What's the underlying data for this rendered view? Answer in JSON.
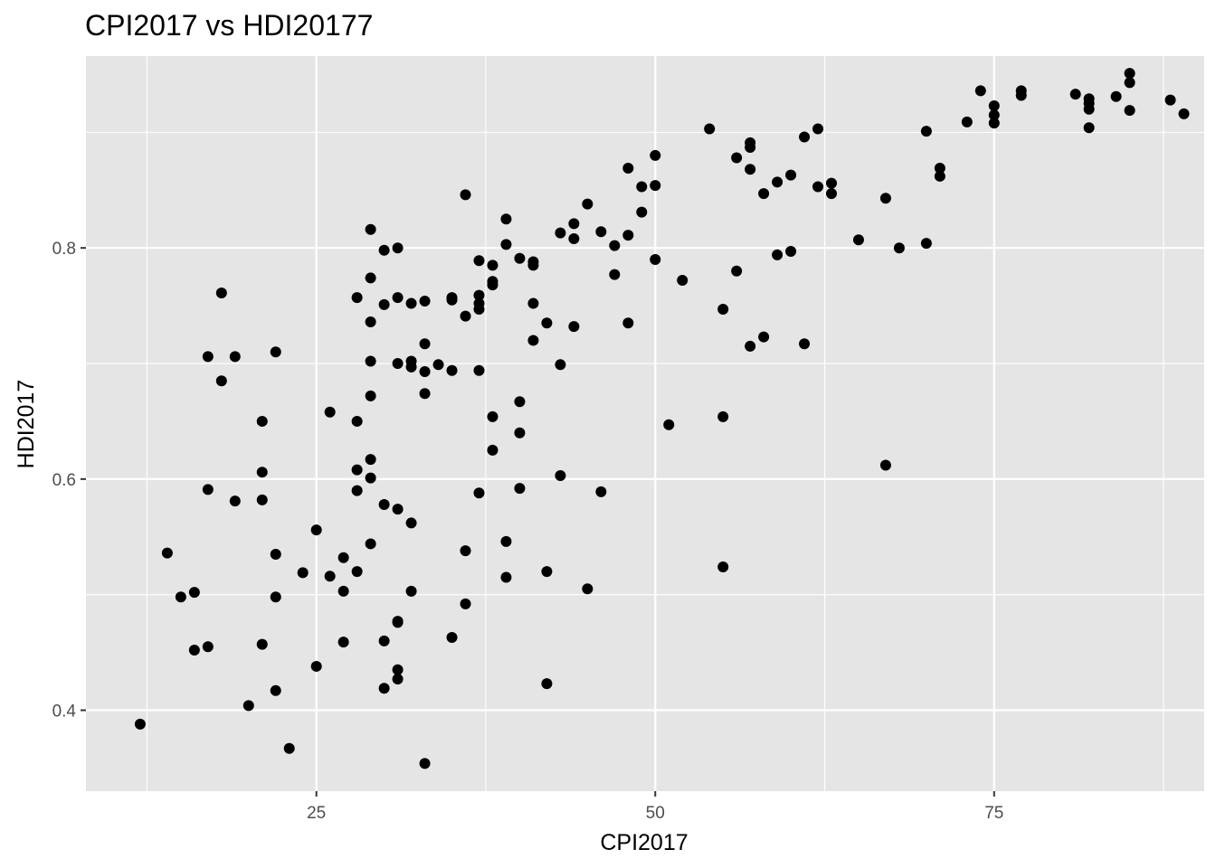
{
  "chart_data": {
    "type": "scatter",
    "title": "CPI2017 vs HDI20177",
    "xlabel": "CPI2017",
    "ylabel": "HDI2017",
    "xlim": [
      8,
      90.5
    ],
    "ylim": [
      0.33,
      0.966
    ],
    "x_major_ticks": [
      25,
      50,
      75
    ],
    "x_tick_labels": [
      "25",
      "50",
      "75"
    ],
    "x_minor_ticks": [
      12.5,
      37.5,
      62.5,
      87.5
    ],
    "y_major_ticks": [
      0.4,
      0.6,
      0.8
    ],
    "y_tick_labels": [
      "0.4",
      "0.6",
      "0.8"
    ],
    "y_minor_ticks": [
      0.5,
      0.7,
      0.9
    ],
    "grid": true,
    "point_color": "#000000",
    "panel_color": "#e5e5e5",
    "grid_color": "#ffffff",
    "points": [
      [
        12,
        0.388
      ],
      [
        14,
        0.536
      ],
      [
        15,
        0.498
      ],
      [
        16,
        0.502
      ],
      [
        16,
        0.452
      ],
      [
        17,
        0.455
      ],
      [
        17,
        0.706
      ],
      [
        17,
        0.591
      ],
      [
        18,
        0.761
      ],
      [
        18,
        0.685
      ],
      [
        19,
        0.706
      ],
      [
        19,
        0.581
      ],
      [
        20,
        0.404
      ],
      [
        21,
        0.65
      ],
      [
        21,
        0.606
      ],
      [
        21,
        0.582
      ],
      [
        21,
        0.457
      ],
      [
        22,
        0.71
      ],
      [
        22,
        0.535
      ],
      [
        22,
        0.498
      ],
      [
        22,
        0.417
      ],
      [
        23,
        0.367
      ],
      [
        24,
        0.519
      ],
      [
        25,
        0.556
      ],
      [
        25,
        0.438
      ],
      [
        26,
        0.658
      ],
      [
        26,
        0.516
      ],
      [
        27,
        0.532
      ],
      [
        27,
        0.503
      ],
      [
        27,
        0.459
      ],
      [
        28,
        0.757
      ],
      [
        28,
        0.65
      ],
      [
        28,
        0.608
      ],
      [
        28,
        0.59
      ],
      [
        28,
        0.52
      ],
      [
        29,
        0.816
      ],
      [
        29,
        0.774
      ],
      [
        29,
        0.736
      ],
      [
        29,
        0.702
      ],
      [
        29,
        0.672
      ],
      [
        29,
        0.617
      ],
      [
        29,
        0.601
      ],
      [
        29,
        0.544
      ],
      [
        30,
        0.798
      ],
      [
        30,
        0.751
      ],
      [
        30,
        0.578
      ],
      [
        30,
        0.46
      ],
      [
        30,
        0.419
      ],
      [
        31,
        0.8
      ],
      [
        31,
        0.757
      ],
      [
        31,
        0.7
      ],
      [
        31,
        0.574
      ],
      [
        31,
        0.477
      ],
      [
        31,
        0.476
      ],
      [
        31,
        0.435
      ],
      [
        31,
        0.427
      ],
      [
        32,
        0.752
      ],
      [
        32,
        0.702
      ],
      [
        32,
        0.697
      ],
      [
        32,
        0.562
      ],
      [
        32,
        0.503
      ],
      [
        33,
        0.754
      ],
      [
        33,
        0.717
      ],
      [
        33,
        0.693
      ],
      [
        33,
        0.674
      ],
      [
        33,
        0.354
      ],
      [
        34,
        0.699
      ],
      [
        35,
        0.757
      ],
      [
        35,
        0.755
      ],
      [
        35,
        0.694
      ],
      [
        35,
        0.463
      ],
      [
        36,
        0.846
      ],
      [
        36,
        0.741
      ],
      [
        36,
        0.538
      ],
      [
        36,
        0.492
      ],
      [
        37,
        0.789
      ],
      [
        37,
        0.759
      ],
      [
        37,
        0.752
      ],
      [
        37,
        0.747
      ],
      [
        37,
        0.694
      ],
      [
        37,
        0.588
      ],
      [
        38,
        0.785
      ],
      [
        38,
        0.771
      ],
      [
        38,
        0.768
      ],
      [
        38,
        0.654
      ],
      [
        38,
        0.625
      ],
      [
        39,
        0.825
      ],
      [
        39,
        0.803
      ],
      [
        39,
        0.546
      ],
      [
        39,
        0.515
      ],
      [
        40,
        0.791
      ],
      [
        40,
        0.667
      ],
      [
        40,
        0.64
      ],
      [
        40,
        0.592
      ],
      [
        41,
        0.788
      ],
      [
        41,
        0.785
      ],
      [
        41,
        0.752
      ],
      [
        41,
        0.72
      ],
      [
        42,
        0.735
      ],
      [
        42,
        0.52
      ],
      [
        42,
        0.423
      ],
      [
        43,
        0.813
      ],
      [
        43,
        0.699
      ],
      [
        43,
        0.603
      ],
      [
        44,
        0.821
      ],
      [
        44,
        0.808
      ],
      [
        44,
        0.732
      ],
      [
        45,
        0.838
      ],
      [
        45,
        0.505
      ],
      [
        46,
        0.814
      ],
      [
        46,
        0.589
      ],
      [
        47,
        0.802
      ],
      [
        47,
        0.777
      ],
      [
        48,
        0.869
      ],
      [
        48,
        0.811
      ],
      [
        48,
        0.735
      ],
      [
        49,
        0.853
      ],
      [
        49,
        0.831
      ],
      [
        50,
        0.88
      ],
      [
        50,
        0.854
      ],
      [
        50,
        0.79
      ],
      [
        51,
        0.647
      ],
      [
        52,
        0.772
      ],
      [
        54,
        0.903
      ],
      [
        55,
        0.747
      ],
      [
        55,
        0.654
      ],
      [
        55,
        0.524
      ],
      [
        56,
        0.878
      ],
      [
        56,
        0.78
      ],
      [
        57,
        0.891
      ],
      [
        57,
        0.887
      ],
      [
        57,
        0.868
      ],
      [
        57,
        0.715
      ],
      [
        58,
        0.847
      ],
      [
        58,
        0.723
      ],
      [
        59,
        0.857
      ],
      [
        59,
        0.794
      ],
      [
        60,
        0.863
      ],
      [
        60,
        0.797
      ],
      [
        61,
        0.896
      ],
      [
        61,
        0.717
      ],
      [
        62,
        0.903
      ],
      [
        62,
        0.853
      ],
      [
        63,
        0.856
      ],
      [
        63,
        0.847
      ],
      [
        65,
        0.807
      ],
      [
        67,
        0.843
      ],
      [
        67,
        0.612
      ],
      [
        68,
        0.8
      ],
      [
        70,
        0.901
      ],
      [
        70,
        0.804
      ],
      [
        71,
        0.869
      ],
      [
        71,
        0.862
      ],
      [
        73,
        0.909
      ],
      [
        74,
        0.936
      ],
      [
        75,
        0.923
      ],
      [
        75,
        0.915
      ],
      [
        75,
        0.908
      ],
      [
        77,
        0.936
      ],
      [
        77,
        0.932
      ],
      [
        81,
        0.933
      ],
      [
        82,
        0.929
      ],
      [
        82,
        0.925
      ],
      [
        82,
        0.92
      ],
      [
        82,
        0.904
      ],
      [
        84,
        0.931
      ],
      [
        85,
        0.951
      ],
      [
        85,
        0.943
      ],
      [
        85,
        0.919
      ],
      [
        88,
        0.928
      ],
      [
        89,
        0.916
      ]
    ]
  }
}
